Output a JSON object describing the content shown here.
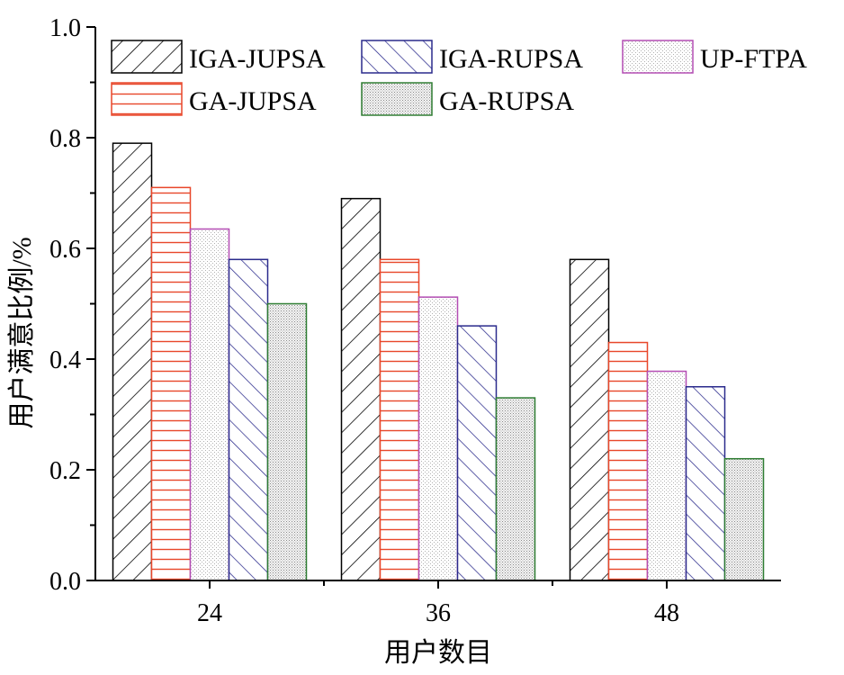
{
  "chart_data": {
    "type": "bar",
    "title": "",
    "xlabel": "用户数目",
    "ylabel": "用户满意比例/%",
    "categories": [
      "24",
      "36",
      "48"
    ],
    "ylim": [
      0,
      1.0
    ],
    "yticks": [
      "0.0",
      "0.2",
      "0.4",
      "0.6",
      "0.8",
      "1.0"
    ],
    "grid": false,
    "legend_position": "top",
    "series": [
      {
        "name": "IGA-JUPSA",
        "values": [
          0.79,
          0.69,
          0.58
        ],
        "color": "#000000",
        "pattern": "diagonal-forward"
      },
      {
        "name": "GA-JUPSA",
        "values": [
          0.71,
          0.58,
          0.43
        ],
        "color": "#e8472a",
        "pattern": "horizontal"
      },
      {
        "name": "UP-FTPA",
        "values": [
          0.635,
          0.512,
          0.378
        ],
        "color": "#b34db3",
        "pattern": "dots-light"
      },
      {
        "name": "IGA-RUPSA",
        "values": [
          0.58,
          0.46,
          0.35
        ],
        "color": "#2a2a8c",
        "pattern": "diagonal-back"
      },
      {
        "name": "GA-RUPSA",
        "values": [
          0.5,
          0.33,
          0.22
        ],
        "color": "#2e7d32",
        "pattern": "dots-dense"
      }
    ]
  }
}
